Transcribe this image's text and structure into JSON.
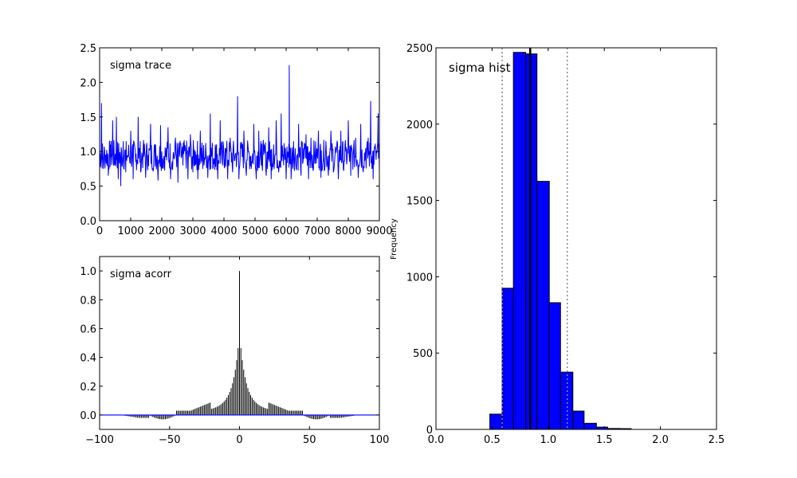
{
  "chart_data": [
    {
      "type": "line",
      "title": "sigma trace",
      "xlim": [
        0,
        9000
      ],
      "ylim": [
        0.0,
        2.5
      ],
      "xticks": [
        "0",
        "1000",
        "2000",
        "3000",
        "4000",
        "5000",
        "6000",
        "7000",
        "8000",
        "9000"
      ],
      "yticks": [
        "0.0",
        "0.5",
        "1.0",
        "1.5",
        "2.0",
        "2.5"
      ],
      "color": "#0000ff",
      "series": [
        {
          "x": [
            0,
            60,
            120,
            200,
            280,
            350,
            420,
            480,
            540,
            600,
            680,
            760,
            840,
            920,
            1000,
            1080,
            1160,
            1240,
            1320,
            1400,
            1480,
            1560,
            1640,
            1720,
            1800,
            1880,
            1960,
            2040,
            2120,
            2200,
            2280,
            2360,
            2440,
            2520,
            2600,
            2680,
            2760,
            2840,
            2920,
            3000,
            3080,
            3160,
            3240,
            3320,
            3400,
            3480,
            3560,
            3640,
            3720,
            3800,
            3880,
            3960,
            4040,
            4120,
            4200,
            4280,
            4360,
            4440,
            4480,
            4560,
            4640,
            4720,
            4800,
            4880,
            4960,
            5040,
            5120,
            5200,
            5280,
            5360,
            5440,
            5520,
            5600,
            5680,
            5760,
            5840,
            5920,
            6000,
            6080,
            6100,
            6160,
            6240,
            6320,
            6400,
            6480,
            6560,
            6640,
            6720,
            6800,
            6880,
            6960,
            7040,
            7120,
            7200,
            7280,
            7360,
            7440,
            7520,
            7600,
            7680,
            7760,
            7840,
            7920,
            8000,
            8080,
            8160,
            8240,
            8320,
            8400,
            8480,
            8560,
            8640,
            8720,
            8800,
            8880,
            8960,
            9000
          ],
          "y": [
            1.05,
            1.7,
            0.75,
            0.95,
            0.65,
            1.1,
            1.45,
            0.8,
            1.5,
            0.6,
            0.5,
            1.15,
            0.7,
            0.95,
            1.3,
            0.6,
            0.85,
            1.5,
            0.7,
            1.05,
            0.62,
            0.95,
            1.4,
            0.72,
            1.1,
            0.58,
            1.38,
            0.75,
            0.95,
            1.35,
            0.6,
            0.9,
            1.2,
            0.55,
            1.1,
            0.8,
            1.05,
            0.6,
            1.25,
            0.7,
            1.0,
            0.6,
            1.3,
            0.75,
            0.9,
            0.62,
            1.55,
            0.75,
            1.1,
            0.6,
            1.45,
            0.8,
            1.05,
            0.6,
            1.2,
            0.7,
            0.95,
            1.8,
            0.6,
            1.05,
            1.3,
            0.65,
            1.0,
            0.75,
            1.4,
            0.6,
            1.3,
            0.8,
            0.95,
            0.65,
            1.35,
            0.6,
            1.1,
            1.45,
            0.7,
            1.55,
            0.8,
            0.6,
            1.0,
            2.25,
            0.6,
            1.15,
            0.75,
            1.4,
            0.65,
            1.05,
            1.25,
            0.6,
            1.2,
            0.75,
            0.95,
            1.3,
            0.62,
            0.9,
            1.15,
            0.65,
            1.3,
            0.7,
            1.05,
            0.6,
            1.3,
            0.75,
            1.0,
            1.45,
            0.65,
            0.95,
            1.2,
            0.62,
            1.4,
            0.7,
            1.05,
            1.2,
            1.73,
            0.6,
            1.0,
            1.55,
            0.7
          ]
        }
      ]
    },
    {
      "type": "bar",
      "title": "sigma acorr",
      "xlim": [
        -100,
        100
      ],
      "ylim": [
        -0.1,
        1.1
      ],
      "xticks": [
        "−100",
        "−50",
        "0",
        "50",
        "100"
      ],
      "yticks": [
        "0.0",
        "0.2",
        "0.4",
        "0.6",
        "0.8",
        "1.0"
      ],
      "bar_color": "#000000",
      "baseline_color": "#0000ff",
      "lag_range": [
        -100,
        100
      ]
    },
    {
      "type": "bar",
      "title": "sigma hist",
      "xlabel": "",
      "ylabel": "Frequency",
      "xlim": [
        0.0,
        2.5
      ],
      "ylim": [
        0,
        2500
      ],
      "xticks": [
        "0.0",
        "0.5",
        "1.0",
        "1.5",
        "2.0",
        "2.5"
      ],
      "yticks": [
        "0",
        "500",
        "1000",
        "1500",
        "2000",
        "2500"
      ],
      "bar_color": "#0000ff",
      "bins": [
        {
          "x0": 0.48,
          "x1": 0.59,
          "count": 100
        },
        {
          "x0": 0.59,
          "x1": 0.69,
          "count": 925
        },
        {
          "x0": 0.69,
          "x1": 0.8,
          "count": 2470
        },
        {
          "x0": 0.8,
          "x1": 0.9,
          "count": 2460
        },
        {
          "x0": 0.9,
          "x1": 1.01,
          "count": 1625
        },
        {
          "x0": 1.01,
          "x1": 1.11,
          "count": 830
        },
        {
          "x0": 1.11,
          "x1": 1.22,
          "count": 375
        },
        {
          "x0": 1.22,
          "x1": 1.32,
          "count": 120
        },
        {
          "x0": 1.32,
          "x1": 1.43,
          "count": 40
        },
        {
          "x0": 1.43,
          "x1": 1.53,
          "count": 15
        },
        {
          "x0": 1.53,
          "x1": 1.64,
          "count": 6
        },
        {
          "x0": 1.64,
          "x1": 1.74,
          "count": 5
        }
      ],
      "mean_line": 0.84,
      "interval_lines": [
        0.59,
        1.17
      ]
    }
  ]
}
